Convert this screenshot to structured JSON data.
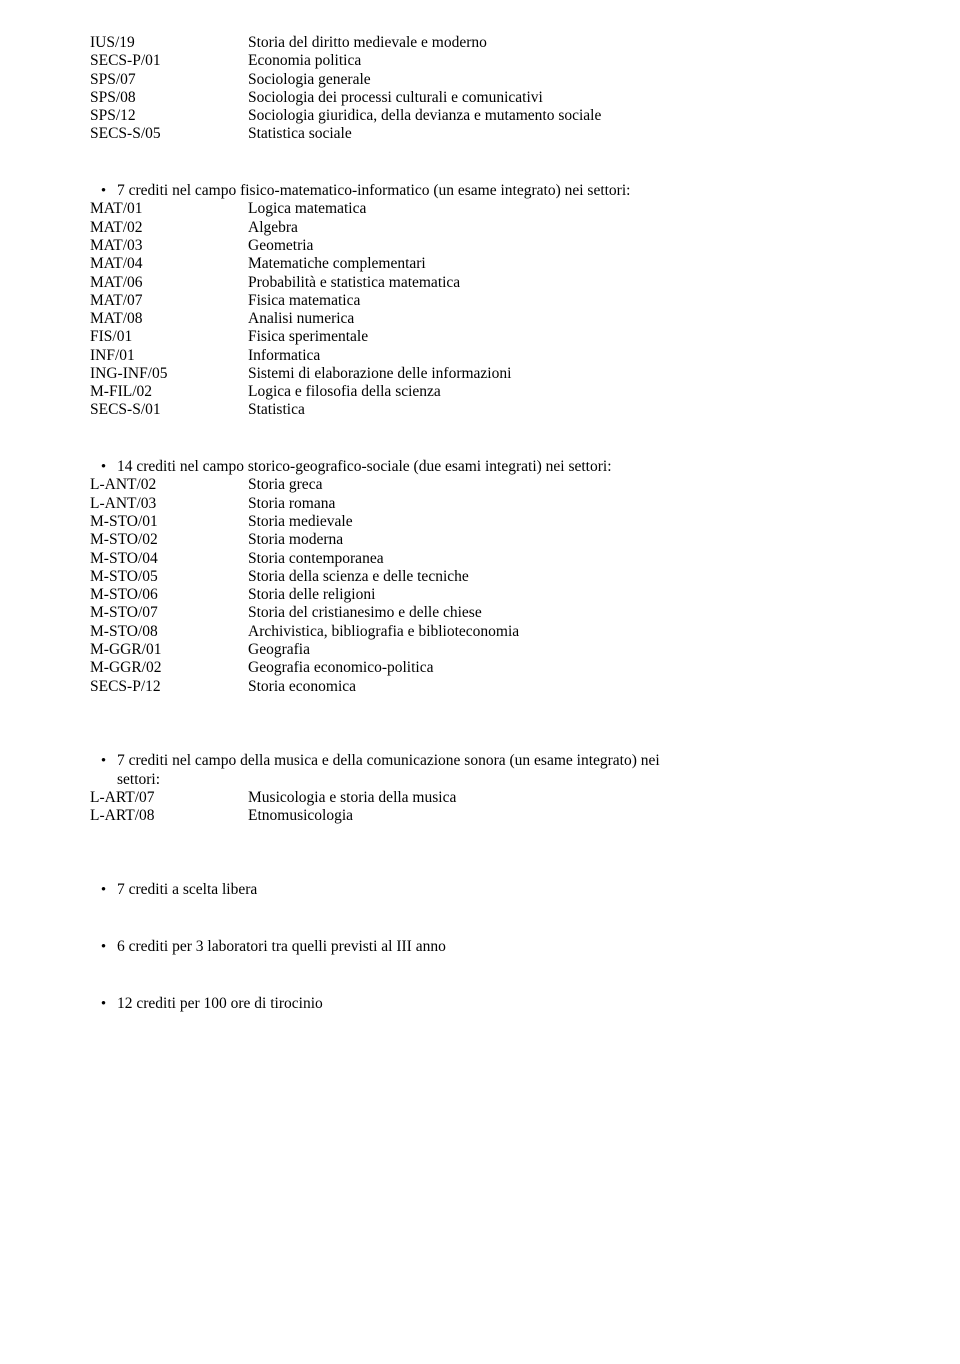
{
  "section1_rows": [
    {
      "code": "IUS/19",
      "desc": "Storia del diritto medievale e moderno"
    },
    {
      "code": "SECS-P/01",
      "desc": "Economia politica"
    },
    {
      "code": "SPS/07",
      "desc": "Sociologia generale"
    },
    {
      "code": "SPS/08",
      "desc": "Sociologia dei processi culturali e comunicativi"
    },
    {
      "code": "SPS/12",
      "desc": "Sociologia giuridica, della devianza e mutamento sociale"
    },
    {
      "code": "SECS-S/05",
      "desc": "Statistica sociale"
    }
  ],
  "bullet2": "7 crediti nel campo fisico-matematico-informatico (un esame integrato) nei settori:",
  "section2_rows": [
    {
      "code": "MAT/01",
      "desc": "Logica matematica"
    },
    {
      "code": "MAT/02",
      "desc": "Algebra"
    },
    {
      "code": "MAT/03",
      "desc": "Geometria"
    },
    {
      "code": "MAT/04",
      "desc": "Matematiche complementari"
    },
    {
      "code": "MAT/06",
      "desc": "Probabilità e statistica matematica"
    },
    {
      "code": "MAT/07",
      "desc": "Fisica matematica"
    },
    {
      "code": "MAT/08",
      "desc": "Analisi numerica"
    },
    {
      "code": "FIS/01",
      "desc": "Fisica sperimentale"
    },
    {
      "code": "INF/01",
      "desc": "Informatica"
    },
    {
      "code": "ING-INF/05",
      "desc": "Sistemi di elaborazione delle informazioni"
    },
    {
      "code": "M-FIL/02",
      "desc": "Logica e filosofia della scienza"
    },
    {
      "code": "SECS-S/01",
      "desc": "Statistica"
    }
  ],
  "bullet3": "14 crediti nel campo storico-geografico-sociale (due esami integrati) nei settori:",
  "section3_rows": [
    {
      "code": "L-ANT/02",
      "desc": "Storia greca"
    },
    {
      "code": "L-ANT/03",
      "desc": "Storia romana"
    },
    {
      "code": "M-STO/01",
      "desc": "Storia medievale"
    },
    {
      "code": "M-STO/02",
      "desc": "Storia moderna"
    },
    {
      "code": "M-STO/04",
      "desc": "Storia contemporanea"
    },
    {
      "code": "M-STO/05",
      "desc": "Storia della scienza e delle tecniche"
    },
    {
      "code": "M-STO/06",
      "desc": "Storia delle religioni"
    },
    {
      "code": "M-STO/07",
      "desc": "Storia del cristianesimo e delle chiese"
    },
    {
      "code": "M-STO/08",
      "desc": "Archivistica, bibliografia e biblioteconomia"
    },
    {
      "code": "M-GGR/01",
      "desc": "Geografia"
    },
    {
      "code": "M-GGR/02",
      "desc": "Geografia economico-politica"
    },
    {
      "code": "SECS-P/12",
      "desc": "Storia economica"
    }
  ],
  "bullet4_line1": "7 crediti nel campo della musica e della comunicazione sonora (un esame integrato) nei",
  "bullet4_line2": "settori:",
  "section4_rows": [
    {
      "code": "L-ART/07",
      "desc": "Musicologia e storia della musica"
    },
    {
      "code": "L-ART/08",
      "desc": "Etnomusicologia"
    }
  ],
  "bullet5": "7 crediti a scelta libera",
  "bullet6": "6 crediti per 3 laboratori tra quelli previsti al III anno",
  "bullet7": "12 crediti per 100 ore di tirocinio",
  "bullet_char": "•"
}
